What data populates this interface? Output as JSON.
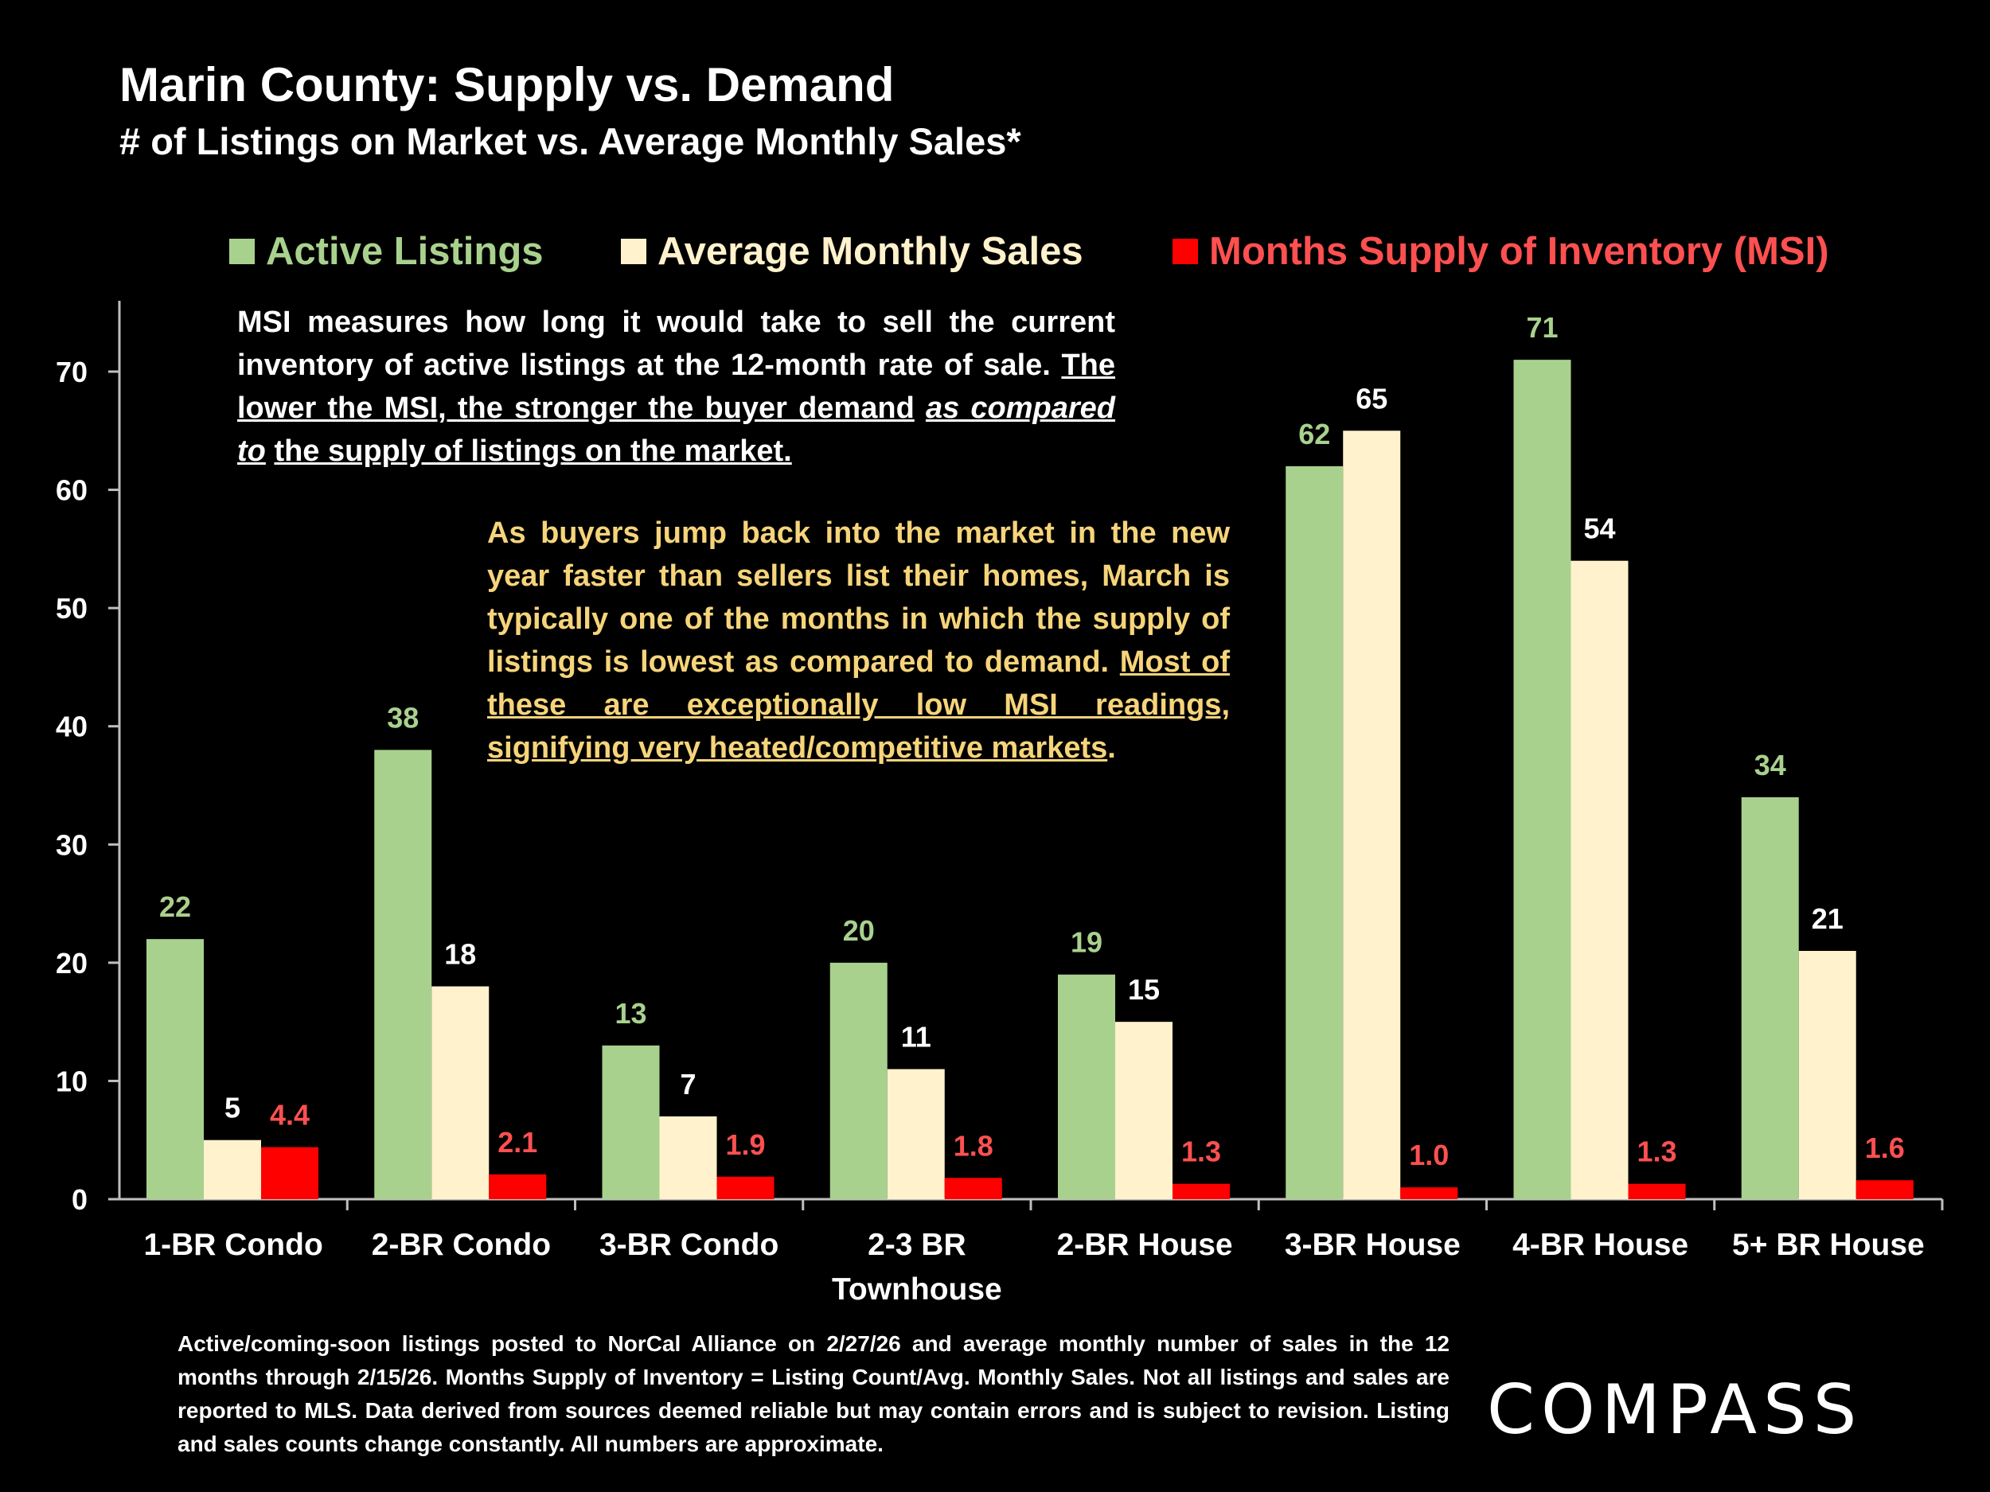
{
  "chart_data": {
    "type": "bar",
    "title": "Marin County: Supply vs. Demand",
    "subtitle": "# of Listings on Market vs. Average Monthly Sales*",
    "categories": [
      "1-BR Condo",
      "2-BR Condo",
      "3-BR Condo",
      "2-3 BR Townhouse",
      "2-BR House",
      "3-BR House",
      "4-BR House",
      "5+ BR House"
    ],
    "category_lines": [
      [
        "1-BR Condo"
      ],
      [
        "2-BR Condo"
      ],
      [
        "3-BR Condo"
      ],
      [
        "2-3 BR",
        "Townhouse"
      ],
      [
        "2-BR House"
      ],
      [
        "3-BR House"
      ],
      [
        "4-BR House"
      ],
      [
        "5+ BR House"
      ]
    ],
    "series": [
      {
        "name": "Active Listings",
        "color": "#a9d18e",
        "values": [
          22,
          38,
          13,
          20,
          19,
          62,
          71,
          34
        ],
        "labels": [
          "22",
          "38",
          "13",
          "20",
          "19",
          "62",
          "71",
          "34"
        ]
      },
      {
        "name": "Average Monthly Sales",
        "color": "#fff2cc",
        "values": [
          5,
          18,
          7,
          11,
          15,
          65,
          54,
          21
        ],
        "labels": [
          "5",
          "18",
          "7",
          "11",
          "15",
          "65",
          "54",
          "21"
        ]
      },
      {
        "name": "Months Supply of Inventory (MSI)",
        "color": "#ff0000",
        "values": [
          4.4,
          2.1,
          1.9,
          1.8,
          1.3,
          1.0,
          1.3,
          1.6
        ],
        "labels": [
          "4.4",
          "2.1",
          "1.9",
          "1.8",
          "1.3",
          "1.0",
          "1.3",
          "1.6"
        ]
      }
    ],
    "ylim": [
      0,
      75
    ],
    "yticks": [
      0,
      10,
      20,
      30,
      40,
      50,
      60,
      70
    ],
    "xlabel": "",
    "ylabel": "",
    "label_colors": {
      "Active Listings": "#a9d18e",
      "Average Monthly Sales": "#ffffff",
      "Months Supply of Inventory (MSI)": "#ff5050"
    },
    "legend_text_colors": {
      "Active Listings": "#a9d18e",
      "Average Monthly Sales": "#fff2cc",
      "Months Supply of Inventory (MSI)": "#ff5050"
    }
  },
  "note1": {
    "plain": "MSI measures how long it would take to sell the current inventory of active listings at the 12-month rate of sale.",
    "underlined_a": "The lower the MSI, the stronger the buyer demand",
    "underlined_italic": "as compared to",
    "underlined_b": "the supply of listings on the market."
  },
  "note2": {
    "plain": "As buyers jump back into the market in the new year faster than sellers list their homes, March is typically one of the months in which the supply of listings is lowest as compared to demand.",
    "underlined": "Most of these are exceptionally low MSI readings, signifying very heated/competitive markets",
    "end": "."
  },
  "footnote": "Active/coming-soon listings posted to NorCal Alliance on 2/27/26 and average monthly number of sales in the 12 months through 2/15/26. Months Supply of Inventory = Listing Count/Avg. Monthly Sales. Not all listings and sales are reported to MLS. Data derived from sources deemed reliable but may contain errors and is subject to revision. Listing and sales counts change constantly. All numbers are approximate.",
  "brand": {
    "logo": "COMPASS"
  }
}
